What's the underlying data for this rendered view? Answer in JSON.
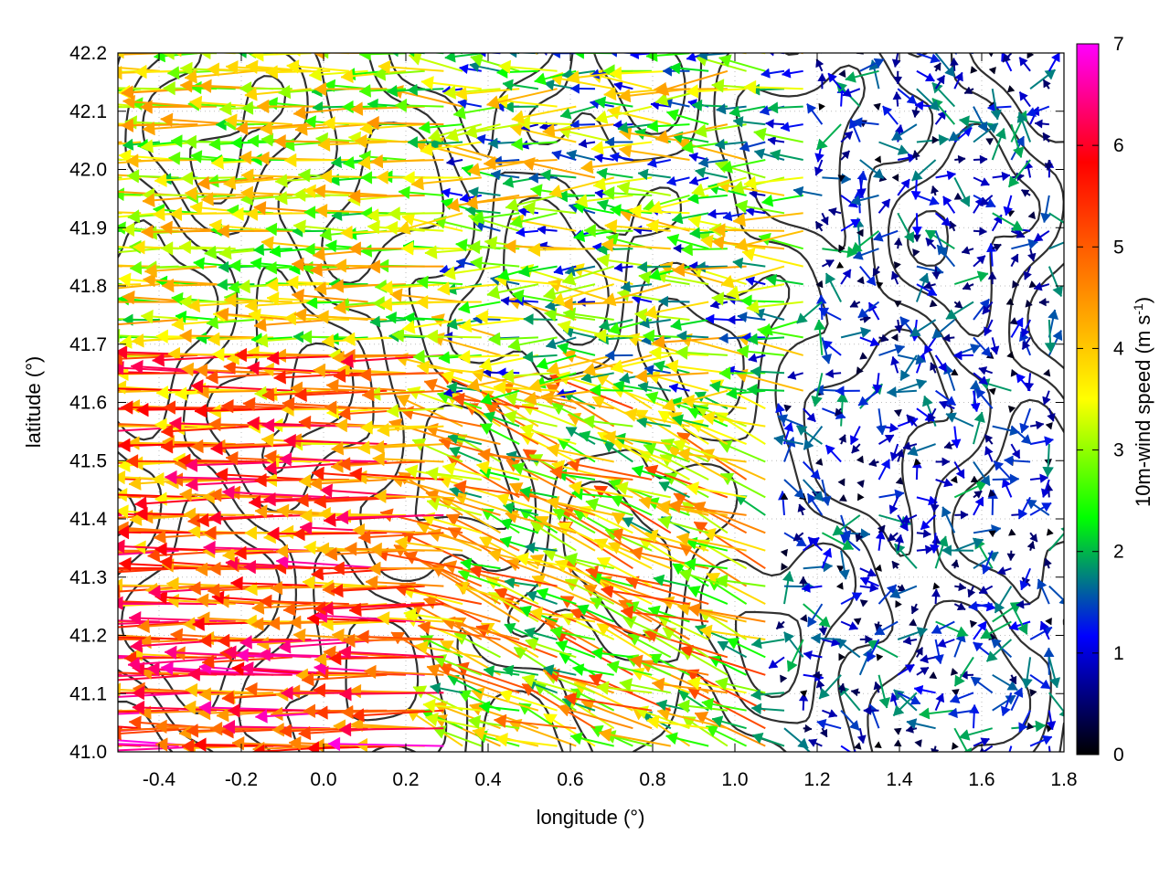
{
  "chart_data": {
    "type": "vector-field",
    "title": "",
    "xlabel": "longitude (°)",
    "ylabel": "latitude (°)",
    "xlim": [
      -0.5,
      1.8
    ],
    "ylim": [
      41.0,
      42.2
    ],
    "xticks": [
      -0.4,
      -0.2,
      0.0,
      0.2,
      0.4,
      0.6,
      0.8,
      1.0,
      1.2,
      1.4,
      1.6,
      1.8
    ],
    "xtick_labels": [
      "-0.4",
      "-0.2",
      "0.0",
      "0.2",
      "0.4",
      "0.6",
      "0.8",
      "1.0",
      "1.2",
      "1.4",
      "1.6",
      "1.8"
    ],
    "yticks": [
      41.0,
      41.1,
      41.2,
      41.3,
      41.4,
      41.5,
      41.6,
      41.7,
      41.8,
      41.9,
      42.0,
      42.1,
      42.2
    ],
    "ytick_labels": [
      "41.0",
      "41.1",
      "41.2",
      "41.3",
      "41.4",
      "41.5",
      "41.6",
      "41.7",
      "41.8",
      "41.9",
      "42.0",
      "42.1",
      "42.2"
    ],
    "grid": "dotted",
    "colorbar": {
      "label": "10m-wind speed (m s",
      "label_sup": "-1",
      "label_end": ")",
      "range": [
        0,
        7
      ],
      "ticks": [
        0,
        1,
        2,
        3,
        4,
        5,
        6,
        7
      ],
      "tick_labels": [
        "0",
        "1",
        "2",
        "3",
        "4",
        "5",
        "6",
        "7"
      ],
      "colors": [
        "#000000",
        "#0000ff",
        "#00ff00",
        "#ffff00",
        "#ff8000",
        "#ff0000",
        "#ff00ff"
      ]
    },
    "series": [
      {
        "kind": "wind-vectors",
        "units": "m s-1",
        "regions_description": [
          {
            "lon": [
              -0.5,
              0.3
            ],
            "lat": [
              41.0,
              41.7
            ],
            "direction": "from east",
            "speed": [
              4,
              7
            ]
          },
          {
            "lon": [
              -0.5,
              0.3
            ],
            "lat": [
              41.7,
              42.2
            ],
            "direction": "from east",
            "speed": [
              2,
              4.5
            ]
          },
          {
            "lon": [
              0.3,
              1.1
            ],
            "lat": [
              41.1,
              41.6
            ],
            "direction": "from east-southeast",
            "speed": [
              2,
              6
            ]
          },
          {
            "lon": [
              0.6,
              1.2
            ],
            "lat": [
              41.6,
              42.0
            ],
            "direction": "from east",
            "speed": [
              1,
              4.5
            ]
          },
          {
            "lon": [
              1.1,
              1.8
            ],
            "lat": [
              41.0,
              42.2
            ],
            "direction": "variable",
            "speed": [
              0,
              2
            ]
          }
        ]
      },
      {
        "kind": "terrain-contours",
        "color": "#303030",
        "levels": 4
      }
    ]
  }
}
